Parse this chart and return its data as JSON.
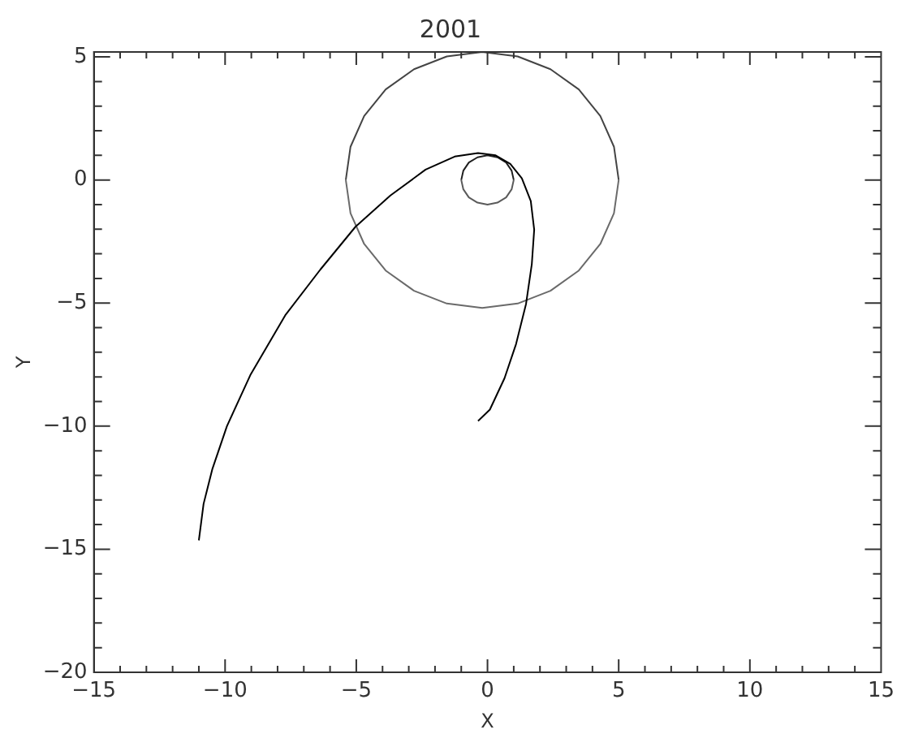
{
  "chart_data": {
    "type": "line",
    "title": "2001",
    "xlabel": "X",
    "ylabel": "Y",
    "grid": false,
    "legend": false,
    "marker": "none",
    "xlim": [
      -15,
      15
    ],
    "ylim": [
      -20,
      5.2
    ],
    "xticks": [
      -15,
      {
        "value": -14,
        "label": null
      },
      {
        "value": -13,
        "label": null
      },
      {
        "value": -12,
        "label": null
      },
      {
        "value": -11,
        "label": null
      },
      -10,
      {
        "value": -9,
        "label": null
      },
      {
        "value": -8,
        "label": null
      },
      {
        "value": -7,
        "label": null
      },
      {
        "value": -6,
        "label": null
      },
      -5,
      {
        "value": -4,
        "label": null
      },
      {
        "value": -3,
        "label": null
      },
      {
        "value": -2,
        "label": null
      },
      {
        "value": -1,
        "label": null
      },
      0,
      {
        "value": 1,
        "label": null
      },
      {
        "value": 2,
        "label": null
      },
      {
        "value": 3,
        "label": null
      },
      {
        "value": 4,
        "label": null
      },
      5,
      {
        "value": 6,
        "label": null
      },
      {
        "value": 7,
        "label": null
      },
      {
        "value": 8,
        "label": null
      },
      {
        "value": 9,
        "label": null
      },
      10,
      {
        "value": 11,
        "label": null
      },
      {
        "value": 12,
        "label": null
      },
      {
        "value": 13,
        "label": null
      },
      {
        "value": 14,
        "label": null
      },
      15
    ],
    "yticks": [
      -20,
      {
        "value": -19,
        "label": null
      },
      {
        "value": -18,
        "label": null
      },
      {
        "value": -17,
        "label": null
      },
      {
        "value": -16,
        "label": null
      },
      -15,
      {
        "value": -14,
        "label": null
      },
      {
        "value": -13,
        "label": null
      },
      {
        "value": -12,
        "label": null
      },
      {
        "value": -11,
        "label": null
      },
      -10,
      {
        "value": -9,
        "label": null
      },
      {
        "value": -8,
        "label": null
      },
      {
        "value": -7,
        "label": null
      },
      {
        "value": -6,
        "label": null
      },
      -5,
      {
        "value": -4,
        "label": null
      },
      {
        "value": -3,
        "label": null
      },
      {
        "value": -2,
        "label": null
      },
      {
        "value": -1,
        "label": null
      },
      0,
      {
        "value": 1,
        "label": null
      },
      {
        "value": 2,
        "label": null
      },
      {
        "value": 3,
        "label": null
      },
      {
        "value": 4,
        "label": null
      },
      5
    ],
    "series": [
      {
        "color": "#000000",
        "x": [
          -11.0,
          -10.82,
          -10.49,
          -9.93,
          -9.04,
          -7.71,
          -6.37,
          -5.03,
          -3.7,
          -2.36,
          -1.25,
          -0.36,
          0.31,
          0.87,
          1.31,
          1.65,
          1.78,
          1.69,
          1.47,
          1.09,
          0.65,
          0.09,
          -0.36
        ],
        "values": [
          -14.64,
          -13.16,
          -11.76,
          -10.0,
          -7.93,
          -5.5,
          -3.64,
          -1.9,
          -0.63,
          0.42,
          0.95,
          1.09,
          1.0,
          0.65,
          0.07,
          -0.86,
          -2.02,
          -3.41,
          -5.03,
          -6.66,
          -8.05,
          -9.33,
          -9.79
        ]
      },
      {
        "color": "#444444",
        "x": [
          -5.4,
          -5.22,
          -4.7,
          -3.88,
          -2.8,
          -1.55,
          -0.2,
          1.15,
          2.4,
          3.48,
          4.3,
          4.82,
          5.0
        ],
        "values": [
          0,
          1.35,
          2.6,
          3.68,
          4.5,
          5.02,
          5.2,
          5.02,
          4.5,
          3.68,
          2.6,
          1.35,
          0
        ]
      },
      {
        "color": "#6a6a6a",
        "x": [
          -5.4,
          -5.22,
          -4.7,
          -3.88,
          -2.8,
          -1.55,
          -0.2,
          1.15,
          2.4,
          3.48,
          4.3,
          4.82,
          5.0
        ],
        "values": [
          0,
          -1.35,
          -2.6,
          -3.68,
          -4.5,
          -5.02,
          -5.2,
          -5.02,
          -4.5,
          -3.68,
          -2.6,
          -1.35,
          0
        ]
      },
      {
        "color": "#1e1e1e",
        "x": [
          -1,
          -0.92,
          -0.71,
          -0.38,
          0,
          0.38,
          0.71,
          0.92,
          1
        ],
        "values": [
          0,
          0.38,
          0.71,
          0.92,
          1,
          0.92,
          0.71,
          0.38,
          0
        ]
      },
      {
        "color": "#5a5a5a",
        "x": [
          -1,
          -0.92,
          -0.71,
          -0.38,
          0,
          0.38,
          0.71,
          0.92,
          1
        ],
        "values": [
          0,
          -0.38,
          -0.71,
          -0.92,
          -1,
          -0.92,
          -0.71,
          -0.38,
          0
        ]
      }
    ]
  }
}
